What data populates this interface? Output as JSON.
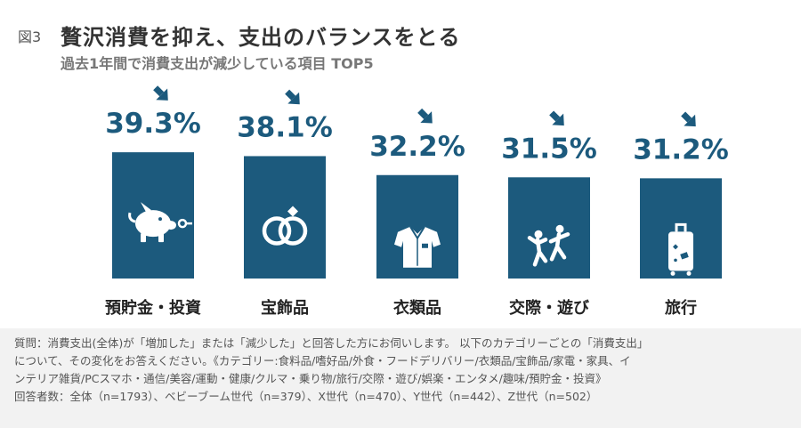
{
  "header": {
    "figure_label": "図3",
    "title": "贅沢消費を抑え、支出のバランスをとる",
    "subtitle": "過去1年間で消費支出が減少している項目 TOP5"
  },
  "chart_data": {
    "type": "bar",
    "title": "贅沢消費を抑え、支出のバランスをとる",
    "subtitle": "過去1年間で消費支出が減少している項目 TOP5",
    "categories": [
      "預貯金・投資",
      "宝飾品",
      "衣類品",
      "交際・遊び",
      "旅行"
    ],
    "values": [
      39.3,
      38.1,
      32.2,
      31.5,
      31.2
    ],
    "value_labels": [
      "39.3%",
      "38.1%",
      "32.2%",
      "31.5%",
      "31.2%"
    ],
    "icons": [
      "piggy-bank-icon",
      "rings-icon",
      "shirt-icon",
      "people-icon",
      "suitcase-icon"
    ],
    "ylabel": "",
    "xlabel": "",
    "unit": "%",
    "bar_color": "#1c5a7d",
    "label_color": "#1c5a7d"
  },
  "footnote": {
    "lines": [
      "質問：消費支出(全体)が「増加した」または「減少した」と回答した方にお伺いします。 以下のカテゴリーごとの「消費支出」",
      "について、その変化をお答えください。《カテゴリー:食料品/嗜好品/外食・フードデリバリー/衣類品/宝飾品/家電・家具、イ",
      "ンテリア雑貨/PCスマホ・通信/美容/運動・健康/クルマ・乗り物/旅行/交際・遊び/娯楽・エンタメ/趣味/預貯金・投資》",
      "回答者数：全体（n=1793）、ベビーブーム世代（n=379）、X世代（n=470）、Y世代（n=442）、Z世代（n=502）"
    ]
  }
}
